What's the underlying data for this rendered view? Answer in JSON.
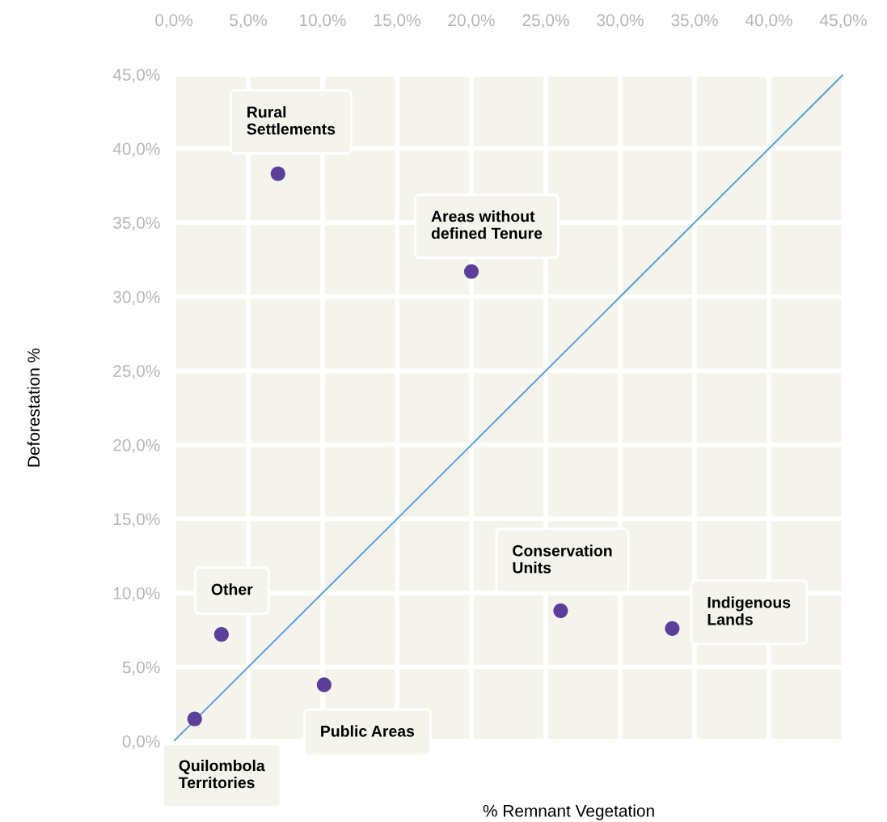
{
  "chart_data": {
    "type": "scatter",
    "xlabel": "% Remnant Vegetation",
    "ylabel": "Deforestation %",
    "series": [
      {
        "name": "Quilombola\nTerritories",
        "color": "#5b3f9a",
        "marker": "circle",
        "x": [
          1.4
        ],
        "values": [
          1.5
        ]
      },
      {
        "name": "Other",
        "color": "#5b3f9a",
        "marker": "circle",
        "x": [
          3.2
        ],
        "values": [
          7.2
        ]
      },
      {
        "name": "Public Areas",
        "color": "#5b3f9a",
        "marker": "circle",
        "x": [
          10.1
        ],
        "values": [
          3.8
        ]
      },
      {
        "name": "Rural\nSettlements",
        "color": "#5b3f9a",
        "marker": "circle",
        "x": [
          7.0
        ],
        "values": [
          38.3
        ]
      },
      {
        "name": "Areas without\ndefined Tenure",
        "color": "#5b3f9a",
        "marker": "circle",
        "x": [
          20.0
        ],
        "values": [
          31.7
        ]
      },
      {
        "name": "Conservation\nUnits",
        "color": "#5b3f9a",
        "marker": "circle",
        "x": [
          26.0
        ],
        "values": [
          8.8
        ]
      },
      {
        "name": "Indigenous\nLands",
        "color": "#5b3f9a",
        "marker": "circle",
        "x": [
          33.5
        ],
        "values": [
          7.6
        ]
      },
      {
        "type": "line",
        "color": "#4a9ce0",
        "x": [
          0,
          45
        ],
        "values": [
          0,
          45
        ]
      }
    ],
    "xlim": [
      0,
      45
    ],
    "ylim": [
      0,
      45
    ],
    "xticks": [
      {
        "value": 0,
        "label": "0,0%"
      },
      {
        "value": 5,
        "label": "5,0%"
      },
      {
        "value": 10,
        "label": "10,0%"
      },
      {
        "value": 15,
        "label": "15,0%"
      },
      {
        "value": 20,
        "label": "20,0%"
      },
      {
        "value": 25,
        "label": "25,0%"
      },
      {
        "value": 30,
        "label": "30,0%"
      },
      {
        "value": 35,
        "label": "35,0%"
      },
      {
        "value": 40,
        "label": "40,0%"
      },
      {
        "value": 45,
        "label": "45,0%"
      }
    ],
    "yticks": [
      {
        "value": 0,
        "label": "0,0%"
      },
      {
        "value": 5,
        "label": "5,0%"
      },
      {
        "value": 10,
        "label": "10,0%"
      },
      {
        "value": 15,
        "label": "15,0%"
      },
      {
        "value": 20,
        "label": "20,0%"
      },
      {
        "value": 25,
        "label": "25,0%"
      },
      {
        "value": 30,
        "label": "30,0%"
      },
      {
        "value": 35,
        "label": "35,0%"
      },
      {
        "value": 40,
        "label": "40,0%"
      },
      {
        "value": 45,
        "label": "45,0%"
      }
    ],
    "grid": true
  }
}
